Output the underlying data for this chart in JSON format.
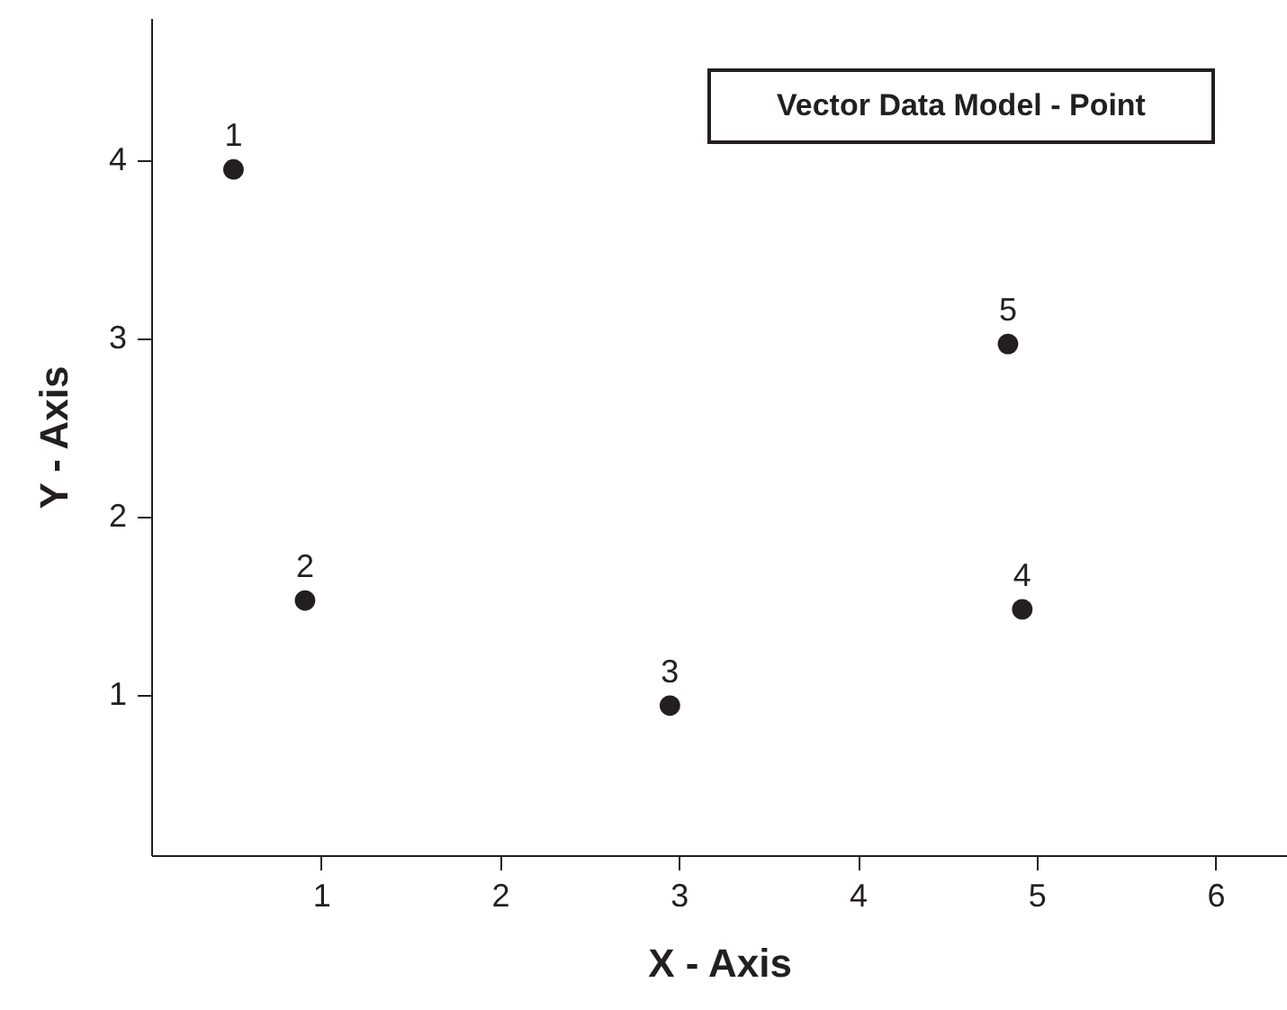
{
  "chart_data": {
    "type": "scatter",
    "title": "Vector Data Model - Point",
    "xlabel": "X - Axis",
    "ylabel": "Y - Axis",
    "x": [
      0.51,
      0.91,
      2.95,
      4.92,
      4.84
    ],
    "series": [
      {
        "color": "#231f20",
        "values": [
          3.95,
          1.53,
          0.94,
          1.48,
          2.97
        ]
      }
    ],
    "annotations": [
      {
        "text": "1",
        "x": 0.51,
        "y": 3.95
      },
      {
        "text": "2",
        "x": 0.91,
        "y": 1.53
      },
      {
        "text": "3",
        "x": 2.95,
        "y": 0.94
      },
      {
        "text": "4",
        "x": 4.92,
        "y": 1.48
      },
      {
        "text": "5",
        "x": 4.84,
        "y": 2.97
      }
    ],
    "xlim": [
      0.05,
      6.4
    ],
    "xticks": [
      1,
      2,
      3,
      4,
      5,
      6
    ],
    "ylim": [
      0.1,
      4.8
    ],
    "yticks": [
      1,
      2,
      3,
      4
    ],
    "grid": false,
    "marker": "circle"
  }
}
